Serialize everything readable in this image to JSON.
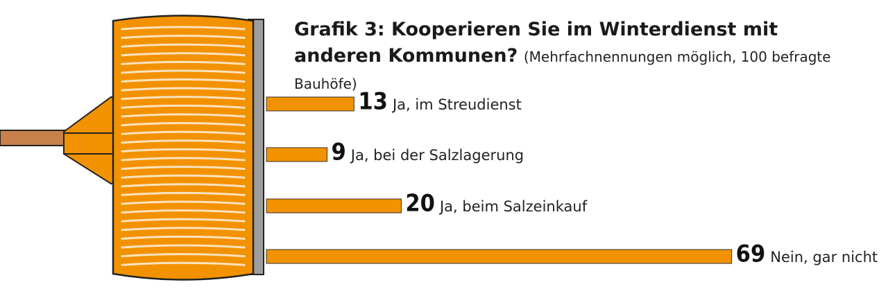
{
  "chart_data": {
    "type": "bar",
    "orientation": "horizontal",
    "title": "Grafik 3: Kooperieren Sie im Winterdienst mit anderen Kommunen?",
    "subtitle": "(Mehrfachnennungen möglich, 100 befragte Bauhöfe)",
    "categories": [
      "Ja, im Streudienst",
      "Ja, bei der Salzlagerung",
      "Ja, beim Salzeinkauf",
      "Nein, gar nicht"
    ],
    "values": [
      13,
      9,
      20,
      69
    ],
    "color": "#f39200"
  }
}
